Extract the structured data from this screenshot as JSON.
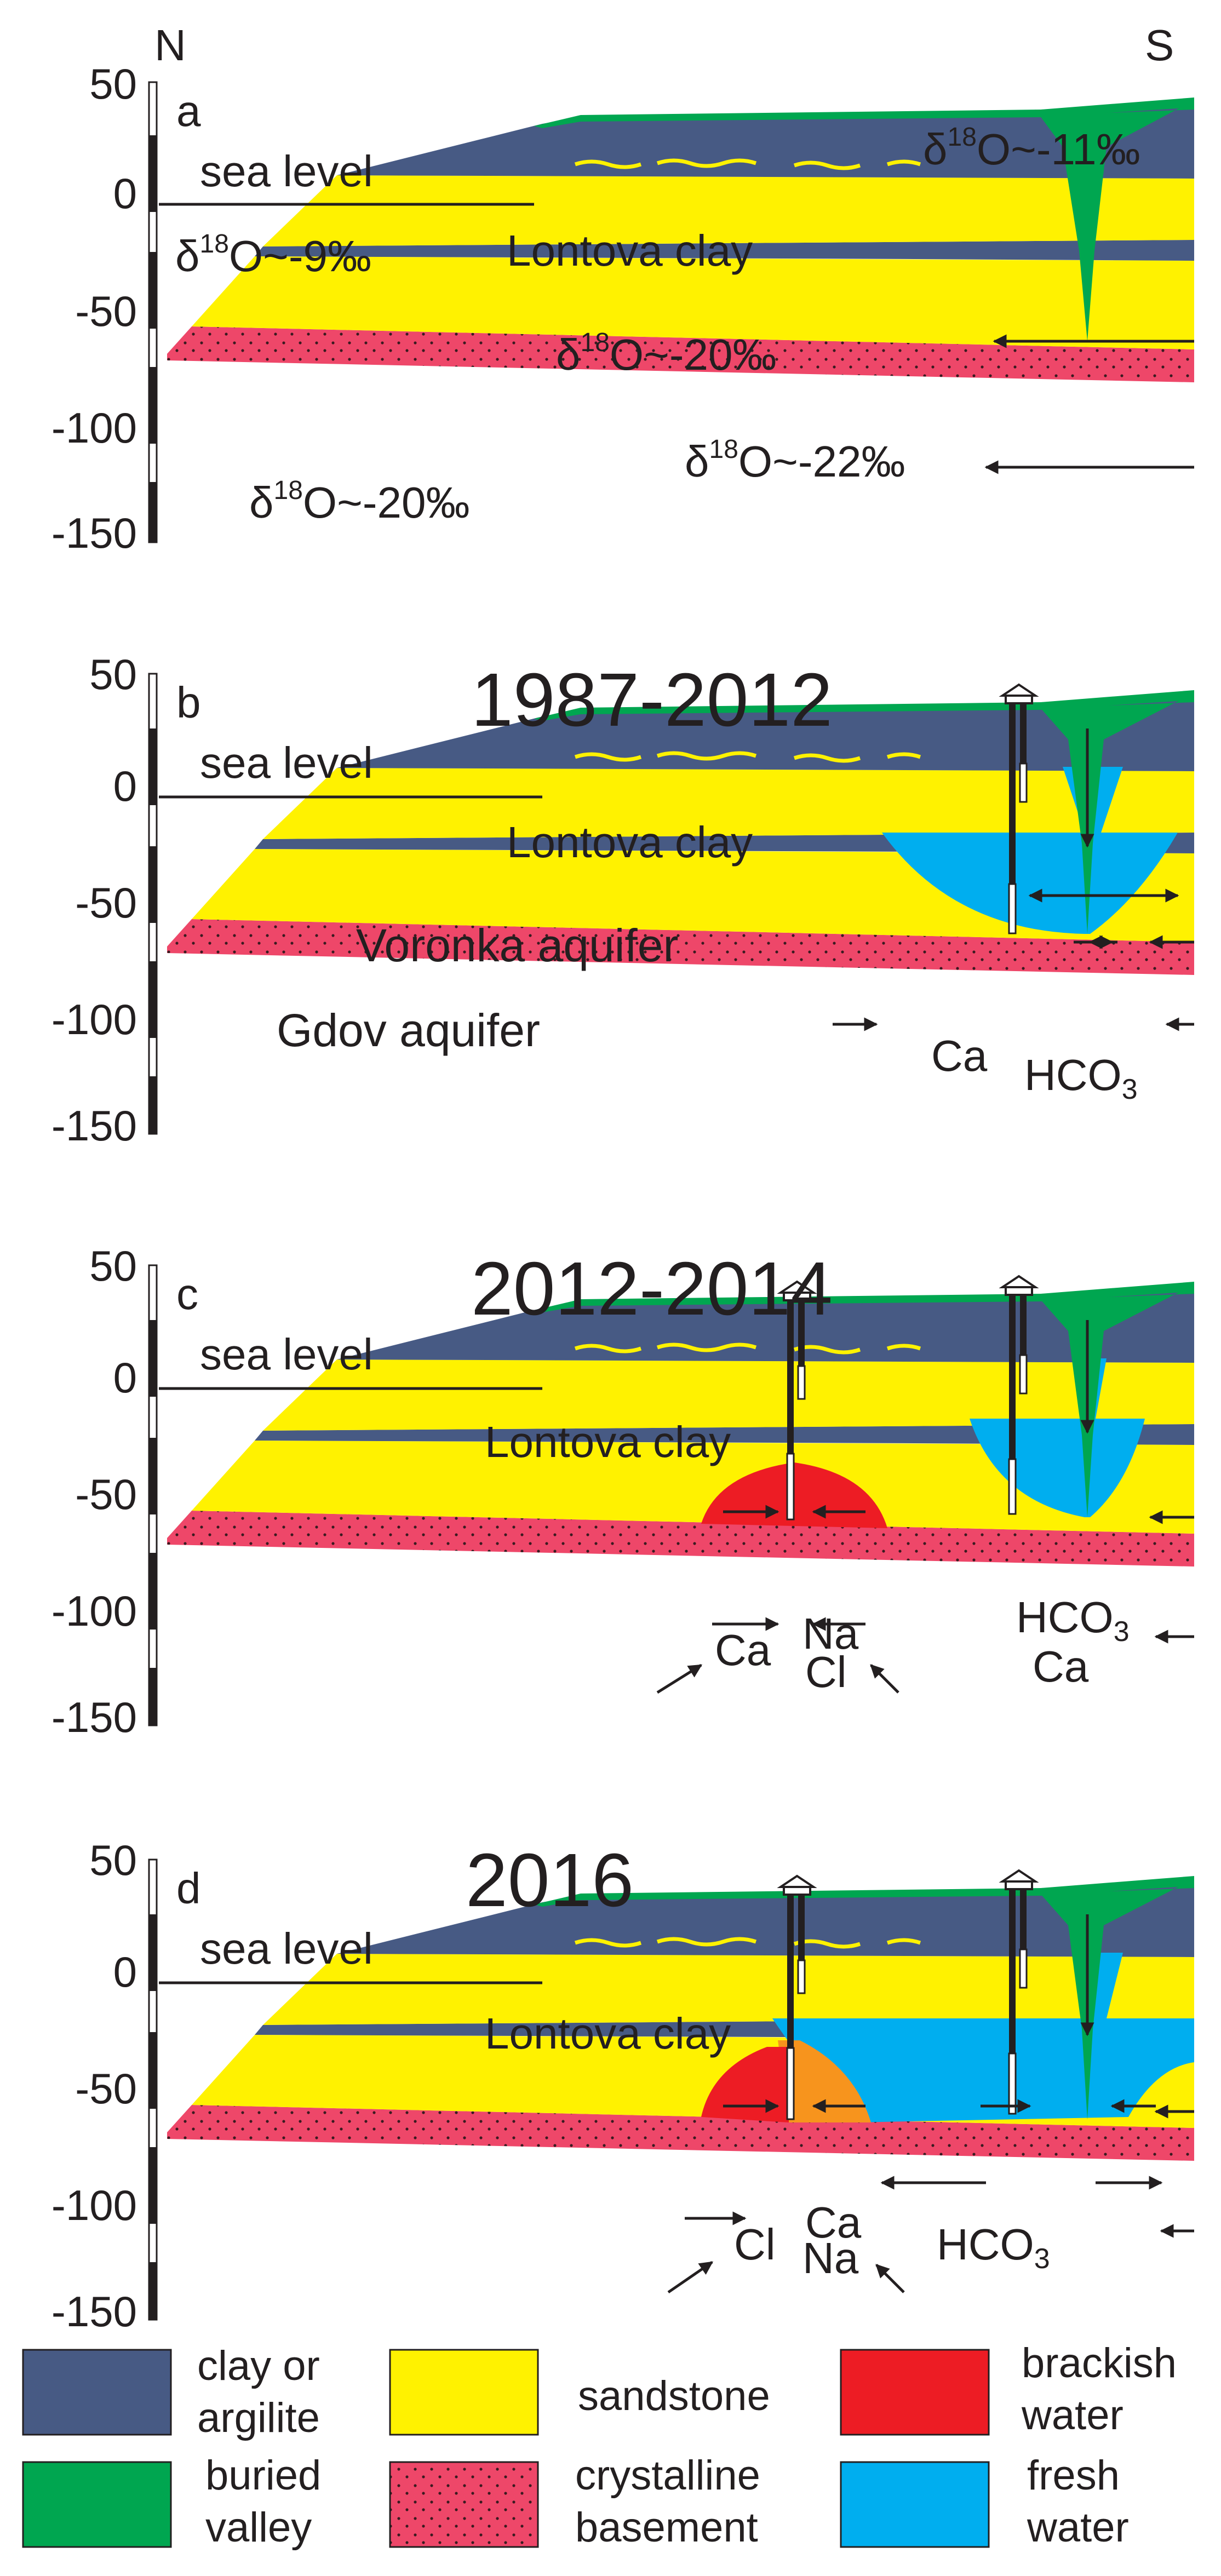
{
  "compass": {
    "north": "N",
    "south": "S"
  },
  "axis_ticks": [
    "50",
    "0",
    "-50",
    "-100",
    "-150"
  ],
  "colors": {
    "clay": "#475a84",
    "sandstone": "#fff200",
    "basement": "#ee4769",
    "buried_valley": "#00a650",
    "brackish": "#ed1c24",
    "fresh": "#00aeef",
    "mixed": "#f7941d"
  },
  "panels": [
    {
      "letter": "a",
      "year": "",
      "sea_level": "sea level",
      "clay": "Lontova clay",
      "iso_left": "~-9‰",
      "iso_valley": "~-11‰",
      "iso_voronka": "~-20‰",
      "iso_gdov": "~-22‰",
      "iso_basement": "~-20‰"
    },
    {
      "letter": "b",
      "year": "1987-2012",
      "sea_level": "sea level",
      "clay": "Lontova clay",
      "voronka": "Voronka aquifer",
      "gdov": "Gdov aquifer",
      "ion_ca": "Ca",
      "ion_hco": "HCO",
      "ion_sub": "3"
    },
    {
      "letter": "c",
      "year": "2012-2014",
      "sea_level": "sea level",
      "clay": "Lontova clay",
      "ion_ca": "Ca",
      "ion_na": "Na",
      "ion_cl": "Cl",
      "ion_hco": "HCO",
      "ion_sub": "3",
      "ion_ca2": "Ca"
    },
    {
      "letter": "d",
      "year": "2016",
      "sea_level": "sea level",
      "clay": "Lontova clay",
      "ion_cl": "Cl",
      "ion_ca": "Ca",
      "ion_na": "Na",
      "ion_hco": "HCO",
      "ion_sub": "3"
    }
  ],
  "legend": {
    "clay_1": "clay or",
    "clay_2": "argilite",
    "valley_1": "buried",
    "valley_2": "valley",
    "sandstone": "sandstone",
    "basement_1": "crystalline",
    "basement_2": "basement",
    "brackish_1": "brackish",
    "brackish_2": "water",
    "fresh_1": "fresh",
    "fresh_2": "water"
  }
}
